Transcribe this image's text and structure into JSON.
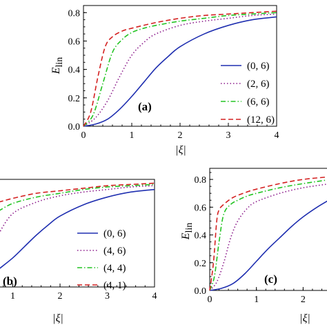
{
  "chart_data": [
    {
      "id": "a",
      "type": "line",
      "panel_label": "(a)",
      "xlabel": "|ξ|",
      "ylabel": "E",
      "ylabel_sub": "lin",
      "xlim": [
        0,
        4
      ],
      "ylim": [
        0,
        0.85
      ],
      "x_ticks": [
        "0",
        "1",
        "2",
        "3",
        "4"
      ],
      "y_ticks": [
        "0.0",
        "0.2",
        "0.4",
        "0.6",
        "0.8"
      ],
      "legend_position": "right",
      "series": [
        {
          "name": "(0, 6)",
          "color": "#1f2fb0",
          "dash": "solid",
          "x": [
            0,
            0.25,
            0.5,
            0.75,
            1.0,
            1.25,
            1.5,
            1.75,
            2.0,
            2.5,
            3.0,
            3.5,
            4.0
          ],
          "y": [
            0,
            0.015,
            0.05,
            0.12,
            0.21,
            0.31,
            0.41,
            0.49,
            0.56,
            0.65,
            0.71,
            0.75,
            0.77
          ]
        },
        {
          "name": "(2, 6)",
          "color": "#8b1a8b",
          "dash": "dot",
          "x": [
            0,
            0.25,
            0.5,
            0.75,
            1.0,
            1.25,
            1.5,
            2.0,
            2.5,
            3.0,
            3.5,
            4.0
          ],
          "y": [
            0,
            0.06,
            0.18,
            0.35,
            0.5,
            0.59,
            0.65,
            0.71,
            0.74,
            0.76,
            0.78,
            0.79
          ]
        },
        {
          "name": "(6, 6)",
          "color": "#22c422",
          "dash": "dashdot",
          "x": [
            0,
            0.2,
            0.4,
            0.6,
            0.8,
            1.0,
            1.25,
            1.5,
            2.0,
            2.5,
            3.0,
            3.5,
            4.0
          ],
          "y": [
            0,
            0.08,
            0.3,
            0.52,
            0.61,
            0.66,
            0.69,
            0.71,
            0.74,
            0.76,
            0.78,
            0.79,
            0.8
          ]
        },
        {
          "name": "(12, 6)",
          "color": "#d42020",
          "dash": "dash",
          "x": [
            0,
            0.15,
            0.3,
            0.45,
            0.6,
            0.8,
            1.0,
            1.5,
            2.0,
            2.5,
            3.0,
            3.5,
            4.0
          ],
          "y": [
            0,
            0.1,
            0.35,
            0.56,
            0.63,
            0.67,
            0.69,
            0.73,
            0.76,
            0.78,
            0.79,
            0.8,
            0.81
          ]
        }
      ]
    },
    {
      "id": "b",
      "type": "line",
      "panel_label": "(b)",
      "xlabel": "|ξ|",
      "xlim": [
        0.7,
        4
      ],
      "ylim": [
        0,
        0.85
      ],
      "x_ticks": [
        "1",
        "2",
        "3",
        "4"
      ],
      "legend_position": "right",
      "series": [
        {
          "name": "(0, 6)",
          "color": "#1f2fb0",
          "dash": "solid",
          "x": [
            0.7,
            1.0,
            1.25,
            1.5,
            1.75,
            2.0,
            2.5,
            3.0,
            3.5,
            4.0
          ],
          "y": [
            0.14,
            0.23,
            0.32,
            0.41,
            0.49,
            0.56,
            0.65,
            0.71,
            0.75,
            0.77
          ]
        },
        {
          "name": "(4, 6)",
          "color": "#8b1a8b",
          "dash": "dot",
          "x": [
            0.7,
            1.0,
            1.5,
            2.0,
            2.5,
            3.0,
            3.5,
            4.0
          ],
          "y": [
            0.42,
            0.58,
            0.67,
            0.72,
            0.75,
            0.77,
            0.79,
            0.8
          ]
        },
        {
          "name": "(4, 4)",
          "color": "#22c422",
          "dash": "dashdot",
          "x": [
            0.7,
            1.0,
            1.5,
            2.0,
            2.5,
            3.0,
            3.5,
            4.0
          ],
          "y": [
            0.6,
            0.66,
            0.71,
            0.74,
            0.77,
            0.79,
            0.8,
            0.81
          ]
        },
        {
          "name": "(4, 1)",
          "color": "#d42020",
          "dash": "dash",
          "x": [
            0.7,
            1.0,
            1.5,
            2.0,
            2.5,
            3.0,
            3.5,
            4.0
          ],
          "y": [
            0.67,
            0.7,
            0.74,
            0.76,
            0.78,
            0.8,
            0.81,
            0.82
          ]
        }
      ]
    },
    {
      "id": "c",
      "type": "line",
      "panel_label": "(c)",
      "xlabel": "|ξ|",
      "ylabel": "E",
      "ylabel_sub": "lin",
      "xlim": [
        0,
        2.6
      ],
      "ylim": [
        0,
        0.88
      ],
      "x_ticks": [
        "0",
        "1",
        "2"
      ],
      "y_ticks": [
        "0.0",
        "0.2",
        "0.4",
        "0.6",
        "0.8"
      ],
      "series": [
        {
          "name": "",
          "color": "#1f2fb0",
          "dash": "solid",
          "x": [
            0,
            0.25,
            0.5,
            0.75,
            1.0,
            1.25,
            1.5,
            1.75,
            2.0,
            2.3,
            2.6
          ],
          "y": [
            0,
            0.015,
            0.05,
            0.12,
            0.21,
            0.3,
            0.38,
            0.46,
            0.53,
            0.6,
            0.66
          ]
        },
        {
          "name": "",
          "color": "#8b1a8b",
          "dash": "dot",
          "x": [
            0,
            0.15,
            0.3,
            0.45,
            0.6,
            0.8,
            1.0,
            1.5,
            2.0,
            2.6
          ],
          "y": [
            0,
            0.06,
            0.2,
            0.38,
            0.5,
            0.59,
            0.64,
            0.7,
            0.74,
            0.77
          ]
        },
        {
          "name": "",
          "color": "#22c422",
          "dash": "dashdot",
          "x": [
            0,
            0.1,
            0.2,
            0.3,
            0.45,
            0.6,
            0.8,
            1.0,
            1.5,
            2.0,
            2.6
          ],
          "y": [
            0,
            0.1,
            0.35,
            0.55,
            0.62,
            0.65,
            0.68,
            0.7,
            0.74,
            0.77,
            0.8
          ]
        },
        {
          "name": "",
          "color": "#d42020",
          "dash": "dash",
          "x": [
            0,
            0.08,
            0.15,
            0.2,
            0.3,
            0.5,
            0.8,
            1.0,
            1.5,
            2.0,
            2.6
          ],
          "y": [
            0,
            0.2,
            0.5,
            0.58,
            0.62,
            0.67,
            0.71,
            0.73,
            0.77,
            0.8,
            0.82
          ]
        }
      ]
    }
  ]
}
